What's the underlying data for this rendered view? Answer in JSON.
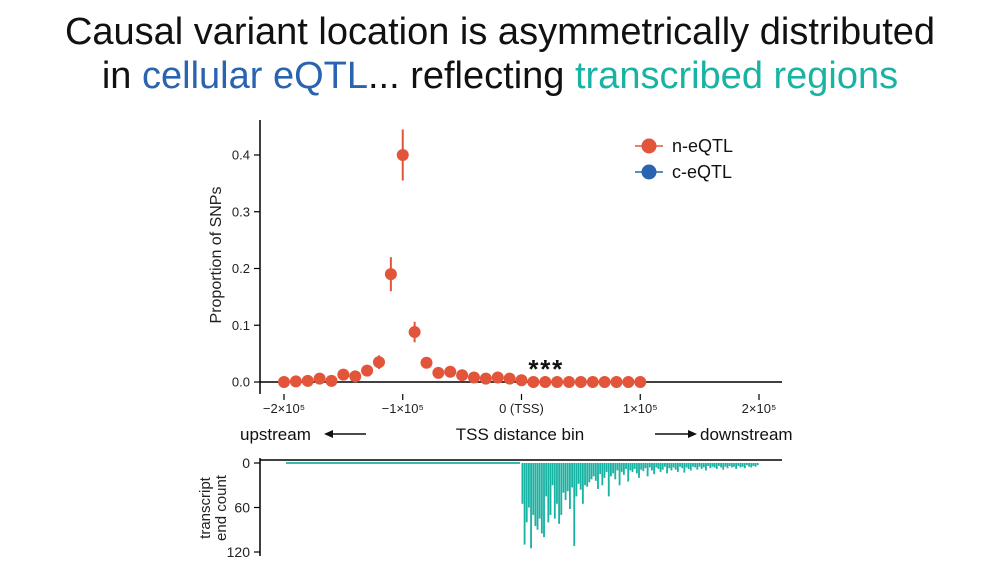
{
  "title": {
    "line1": "Causal variant location is asymmetrically distributed",
    "line2_prefix": "in ",
    "line2_blue": "cellular eQTL",
    "line2_middle": "... reflecting ",
    "line2_teal": "transcribed regions"
  },
  "colors": {
    "n_eqtl": "#e2553b",
    "c_eqtl": "#2a63b0",
    "transcript": "#19b3a3",
    "title_blue": "#2a63b0",
    "title_teal": "#19b3a3"
  },
  "chart_data": [
    {
      "type": "scatter",
      "ylabel": "Proportion of SNPs",
      "xlabel": "TSS distance bin",
      "xlim": [
        -210000,
        210000
      ],
      "ylim": [
        0,
        0.45
      ],
      "x_ticks": [
        -200000,
        -100000,
        0,
        100000,
        200000
      ],
      "x_tick_labels": [
        "−2×10⁵",
        "−1×10⁵",
        "0 (TSS)",
        "1×10⁵",
        "2×10⁵"
      ],
      "y_ticks": [
        0.0,
        0.1,
        0.2,
        0.3,
        0.4
      ],
      "y_tick_labels": [
        "0.0",
        "0.1",
        "0.2",
        "0.3",
        "0.4"
      ],
      "legend": [
        "n-eQTL",
        "c-eQTL"
      ],
      "direction_left": "upstream",
      "direction_right": "downstream",
      "significance_marker": "*",
      "significant_x": [
        10000,
        20000,
        30000
      ],
      "series": [
        {
          "name": "n-eQTL",
          "x": [
            -200000,
            -190000,
            -180000,
            -170000,
            -160000,
            -150000,
            -140000,
            -130000,
            -120000,
            -110000,
            -100000,
            -90000,
            -80000,
            -70000,
            -60000,
            -50000,
            -40000,
            -30000,
            -20000,
            -10000,
            0,
            10000,
            20000,
            30000,
            40000,
            50000,
            60000,
            70000,
            80000,
            90000,
            100000
          ],
          "values": [
            0.0,
            0.001,
            0.002,
            0.006,
            0.002,
            0.013,
            0.01,
            0.02,
            0.035,
            0.19,
            0.4,
            0.088,
            0.034,
            0.016,
            0.018,
            0.012,
            0.008,
            0.006,
            0.008,
            0.006,
            0.003,
            0.0,
            0.0,
            0.0,
            0.0,
            0.0,
            0.0,
            0.0,
            0.0,
            0.0,
            0.0
          ],
          "err": [
            0.004,
            0.005,
            0.005,
            0.005,
            0.005,
            0.006,
            0.006,
            0.008,
            0.012,
            0.03,
            0.045,
            0.018,
            0.01,
            0.006,
            0.006,
            0.005,
            0.005,
            0.005,
            0.005,
            0.005,
            0.004,
            0,
            0,
            0,
            0,
            0,
            0,
            0,
            0,
            0,
            0
          ]
        },
        {
          "name": "c-eQTL",
          "x": [],
          "values": [],
          "err": []
        }
      ]
    },
    {
      "type": "bar",
      "ylabel": "transcript end count",
      "ylim": [
        0,
        120
      ],
      "inverted": true,
      "y_ticks": [
        0,
        60,
        120
      ],
      "y_tick_labels": [
        "0",
        "60",
        "120"
      ],
      "x_start": 0,
      "x_end": 200000,
      "values": [
        55,
        110,
        80,
        60,
        115,
        70,
        85,
        90,
        75,
        95,
        100,
        45,
        80,
        70,
        30,
        75,
        55,
        82,
        70,
        40,
        50,
        38,
        62,
        33,
        112,
        45,
        28,
        36,
        55,
        30,
        32,
        26,
        22,
        18,
        24,
        35,
        15,
        30,
        20,
        12,
        45,
        18,
        14,
        22,
        10,
        30,
        12,
        16,
        8,
        25,
        10,
        12,
        8,
        14,
        20,
        9,
        11,
        7,
        18,
        6,
        10,
        15,
        6,
        8,
        12,
        9,
        5,
        14,
        7,
        10,
        6,
        9,
        12,
        5,
        7,
        13,
        6,
        8,
        10,
        5,
        6,
        9,
        5,
        8,
        6,
        10,
        4,
        7,
        5,
        6,
        8,
        4,
        6,
        9,
        5,
        7,
        4,
        6,
        5,
        8,
        4,
        6,
        5,
        7,
        3,
        5,
        6,
        4,
        5,
        3
      ]
    }
  ]
}
